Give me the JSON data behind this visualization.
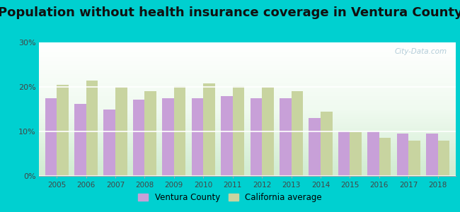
{
  "title": "Population without health insurance coverage in Ventura County",
  "years": [
    2005,
    2006,
    2007,
    2008,
    2009,
    2010,
    2011,
    2012,
    2013,
    2014,
    2015,
    2016,
    2017,
    2018
  ],
  "ventura": [
    17.5,
    16.2,
    15.0,
    17.2,
    17.5,
    17.5,
    18.0,
    17.5,
    17.5,
    13.0,
    10.0,
    10.0,
    9.5,
    9.5
  ],
  "california": [
    20.5,
    21.5,
    20.0,
    19.0,
    20.2,
    20.8,
    20.2,
    20.0,
    19.0,
    14.5,
    9.8,
    8.5,
    8.0,
    8.0
  ],
  "ventura_color": "#c8a0d8",
  "california_color": "#c8d4a0",
  "bg_outer": "#00d0d0",
  "title_fontsize": 13,
  "ylim": [
    0,
    30
  ],
  "yticks": [
    0,
    10,
    20,
    30
  ],
  "ytick_labels": [
    "0%",
    "10%",
    "20%",
    "30%"
  ],
  "watermark": "City-Data.com",
  "legend_ventura": "Ventura County",
  "legend_california": "California average"
}
